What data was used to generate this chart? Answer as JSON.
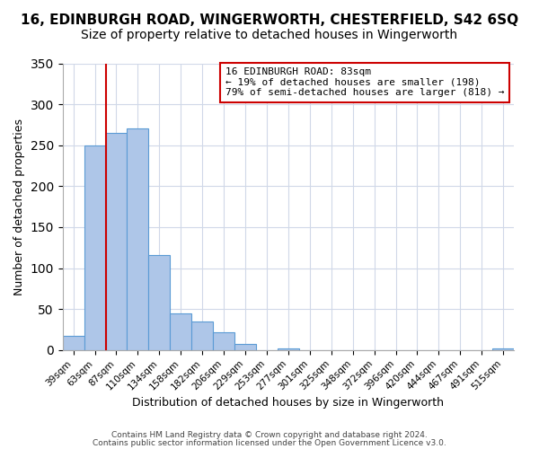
{
  "title": "16, EDINBURGH ROAD, WINGERWORTH, CHESTERFIELD, S42 6SQ",
  "subtitle": "Size of property relative to detached houses in Wingerworth",
  "xlabel": "Distribution of detached houses by size in Wingerworth",
  "ylabel": "Number of detached properties",
  "bar_labels": [
    "39sqm",
    "63sqm",
    "87sqm",
    "110sqm",
    "134sqm",
    "158sqm",
    "182sqm",
    "206sqm",
    "229sqm",
    "253sqm",
    "277sqm",
    "301sqm",
    "325sqm",
    "348sqm",
    "372sqm",
    "396sqm",
    "420sqm",
    "444sqm",
    "467sqm",
    "491sqm",
    "515sqm"
  ],
  "bar_values": [
    17,
    250,
    265,
    270,
    116,
    45,
    35,
    22,
    8,
    0,
    2,
    0,
    0,
    0,
    0,
    0,
    0,
    0,
    0,
    0,
    2
  ],
  "bar_color": "#aec6e8",
  "bar_edgecolor": "#5b9bd5",
  "vline_x": 1.5,
  "vline_color": "#cc0000",
  "ylim": [
    0,
    350
  ],
  "annotation_text": "16 EDINBURGH ROAD: 83sqm\n← 19% of detached houses are smaller (198)\n79% of semi-detached houses are larger (818) →",
  "annotation_box_edgecolor": "#cc0000",
  "footer1": "Contains HM Land Registry data © Crown copyright and database right 2024.",
  "footer2": "Contains public sector information licensed under the Open Government Licence v3.0.",
  "title_fontsize": 11,
  "subtitle_fontsize": 10,
  "xlabel_fontsize": 9,
  "ylabel_fontsize": 9
}
